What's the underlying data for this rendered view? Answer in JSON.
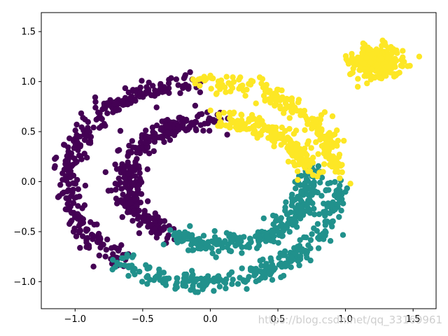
{
  "chart_data": {
    "type": "scatter",
    "title": "",
    "xlabel": "",
    "ylabel": "",
    "xlim": [
      -1.25,
      1.67
    ],
    "ylim": [
      -1.27,
      1.69
    ],
    "xticks": [
      -1.0,
      -0.5,
      0.0,
      0.5,
      1.0,
      1.5
    ],
    "yticks": [
      -1.0,
      -0.5,
      0.0,
      0.5,
      1.0,
      1.5
    ],
    "xtick_labels": [
      "−1.0",
      "−0.5",
      "0.0",
      "0.5",
      "1.0",
      "1.5"
    ],
    "ytick_labels": [
      "−1.0",
      "−0.5",
      "0.0",
      "0.5",
      "1.0",
      "1.5"
    ],
    "grid": false,
    "legend": "none",
    "series": [
      {
        "color": "#440154",
        "description_clusters": [
          {
            "shape": "ring-arc",
            "center": [
              -0.05,
              0.0
            ],
            "radius_x": 1.0,
            "radius_y": 1.0,
            "angle_from_deg": 93,
            "angle_to_deg": 232,
            "noise": 0.05
          },
          {
            "shape": "ring-arc",
            "center": [
              0.05,
              0.0
            ],
            "radius_x": 0.68,
            "radius_y": 0.62,
            "angle_from_deg": 88,
            "angle_to_deg": 240,
            "noise": 0.05
          }
        ]
      },
      {
        "color": "#21918c",
        "description_clusters": [
          {
            "shape": "ring-arc",
            "center": [
              -0.05,
              0.0
            ],
            "radius_x": 1.0,
            "radius_y": 1.0,
            "angle_from_deg": 232,
            "angle_to_deg": 360,
            "noise": 0.05
          },
          {
            "shape": "ring-arc",
            "center": [
              0.05,
              0.0
            ],
            "radius_x": 0.68,
            "radius_y": 0.62,
            "angle_from_deg": 240,
            "angle_to_deg": 370,
            "noise": 0.05
          }
        ]
      },
      {
        "color": "#fde725",
        "description_clusters": [
          {
            "shape": "ring-arc",
            "center": [
              -0.05,
              0.0
            ],
            "radius_x": 1.0,
            "radius_y": 1.0,
            "angle_from_deg": 0,
            "angle_to_deg": 93,
            "noise": 0.05
          },
          {
            "shape": "ring-arc",
            "center": [
              0.05,
              0.0
            ],
            "radius_x": 0.68,
            "radius_y": 0.62,
            "angle_from_deg": 10,
            "angle_to_deg": 88,
            "noise": 0.05
          },
          {
            "shape": "blob",
            "center": [
              1.22,
              1.2
            ],
            "sigma": 0.1
          }
        ]
      }
    ]
  },
  "watermark": "https://blog.csdn.net/qq_33169961"
}
